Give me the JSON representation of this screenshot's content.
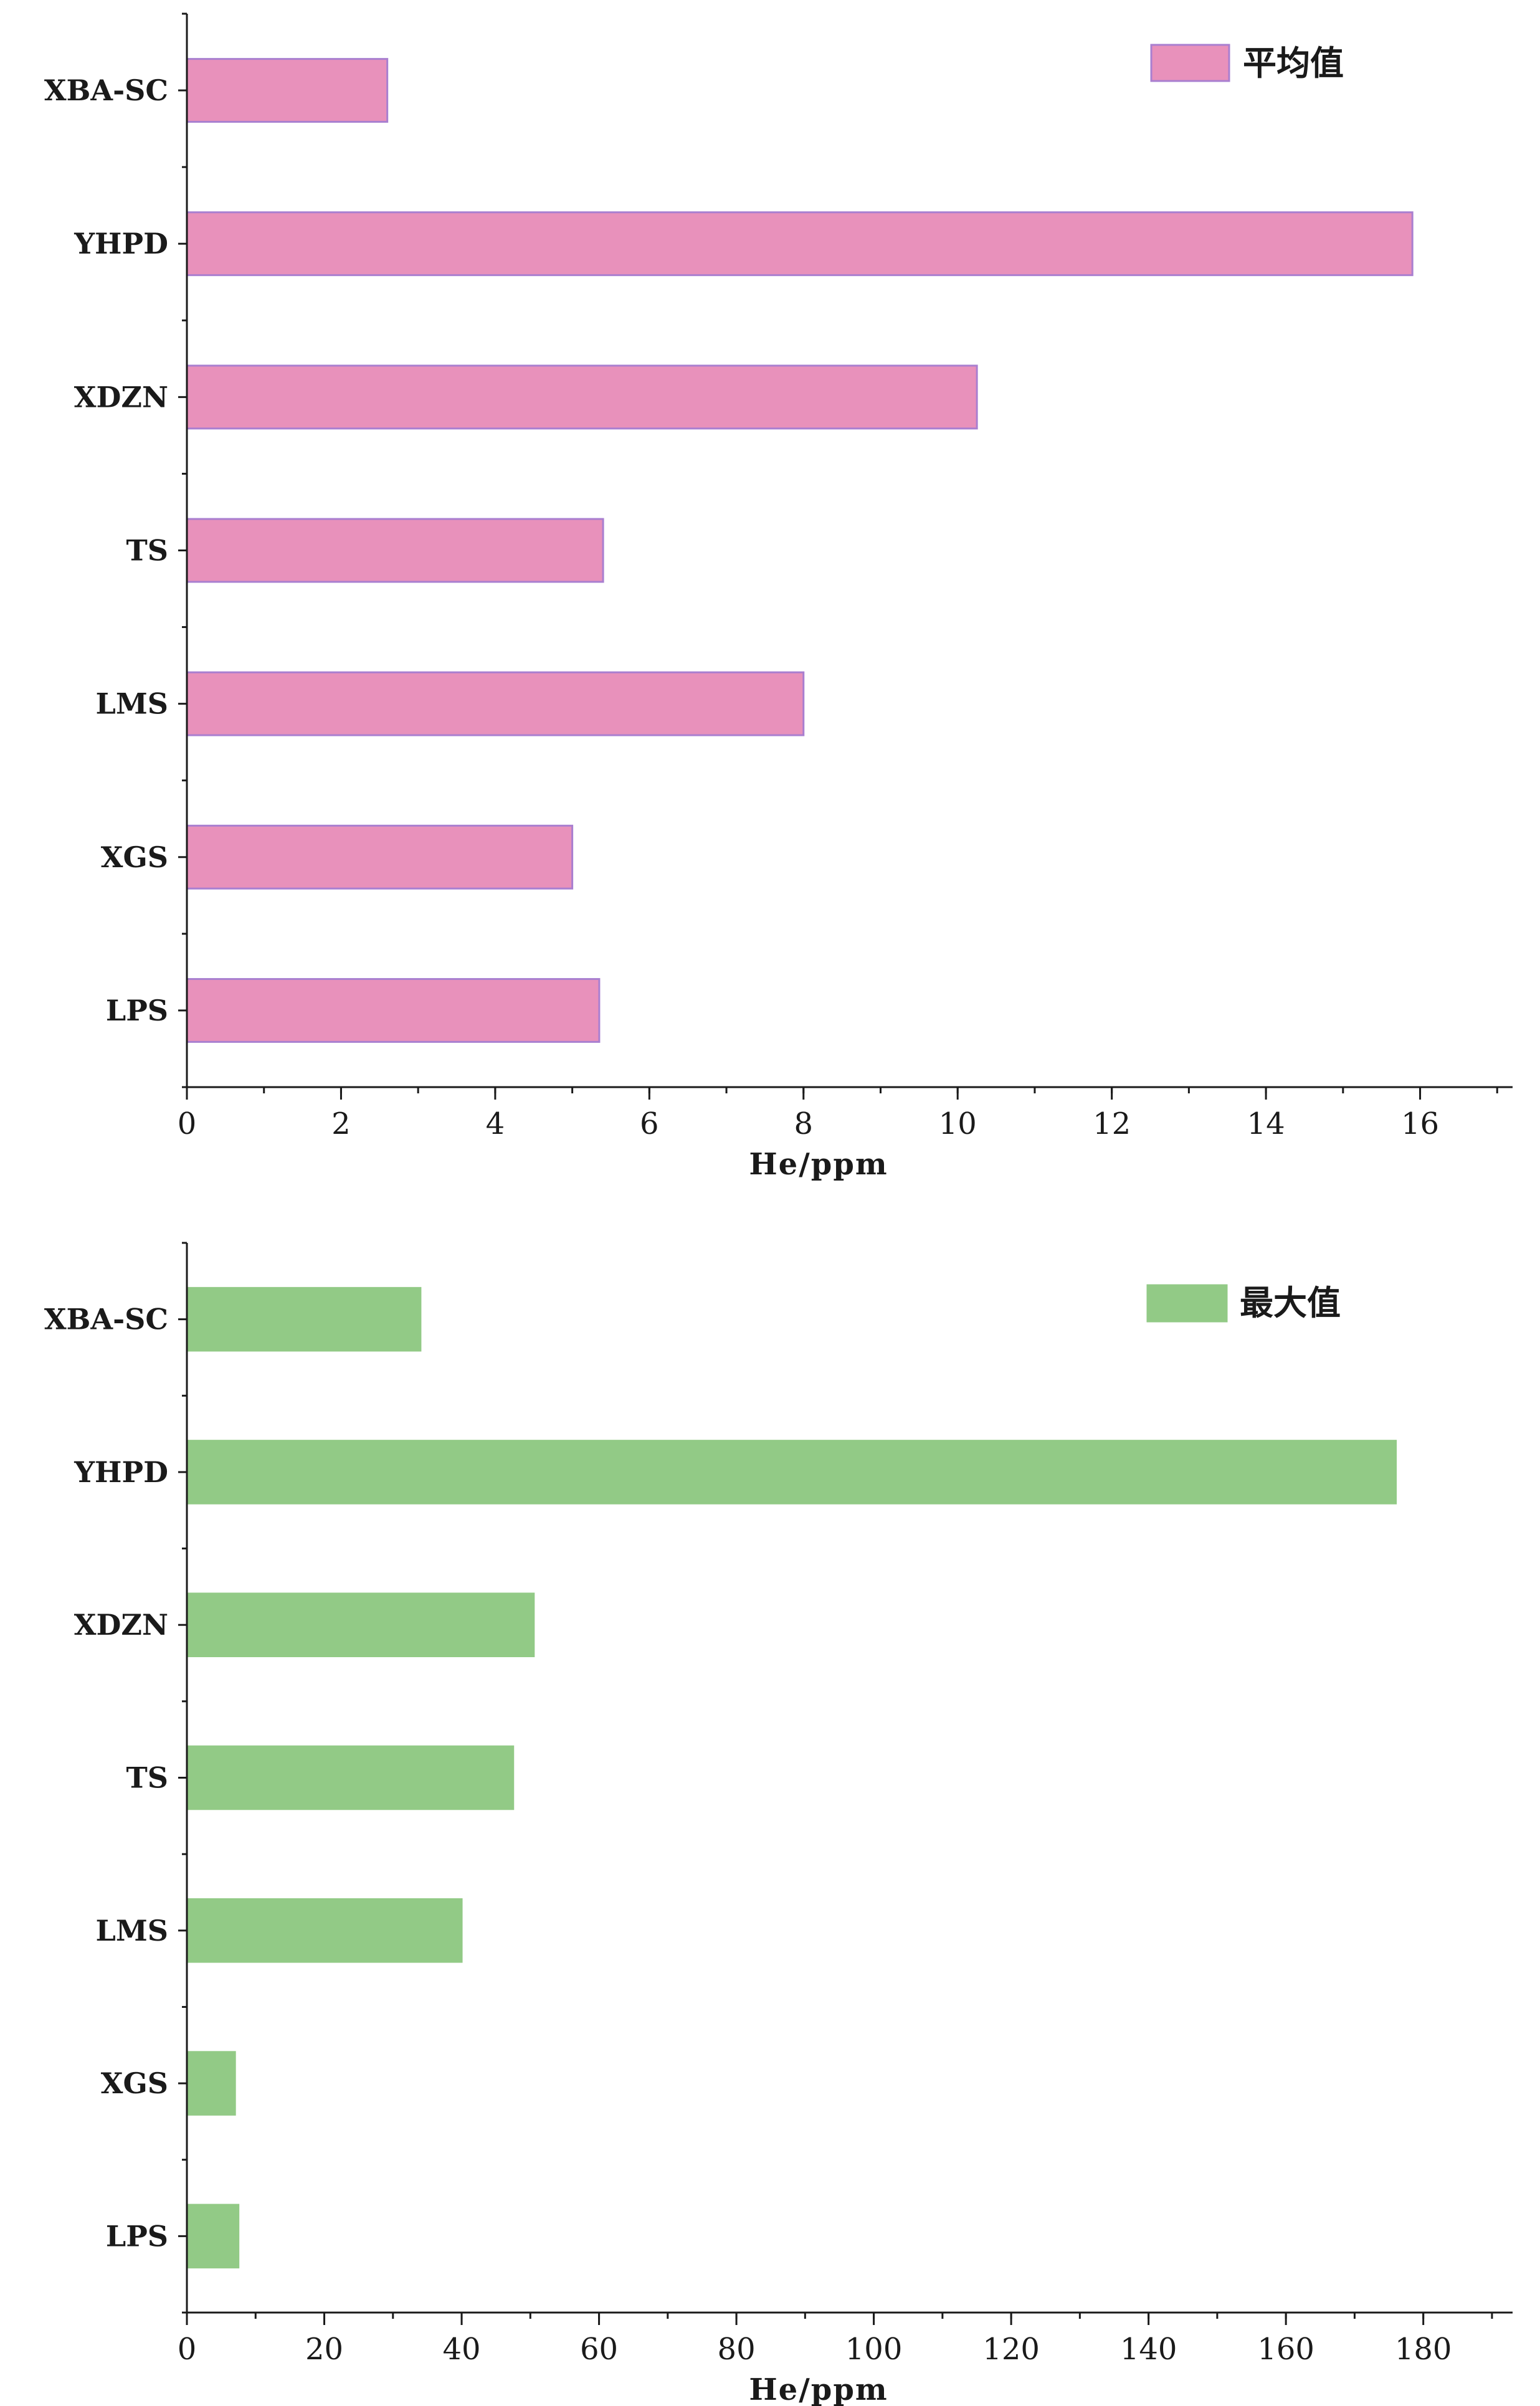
{
  "chart_data": [
    {
      "type": "bar",
      "orientation": "horizontal",
      "categories": [
        "XBA-SC",
        "YHPD",
        "XDZN",
        "TS",
        "LMS",
        "XGS",
        "LPS"
      ],
      "series": [
        {
          "name": "平均值",
          "values": [
            2.6,
            15.9,
            10.25,
            5.4,
            8.0,
            5.0,
            5.35
          ]
        }
      ],
      "xlabel": "He/ppm",
      "xlim": [
        0,
        17.2
      ],
      "xticks": [
        0,
        2,
        4,
        6,
        8,
        10,
        12,
        14,
        16
      ],
      "x_minor_step": 1,
      "colors": {
        "fill": "#e891bb",
        "stroke": "#a97fd0"
      },
      "legend_position": "top-right",
      "grid": false
    },
    {
      "type": "bar",
      "orientation": "horizontal",
      "categories": [
        "XBA-SC",
        "YHPD",
        "XDZN",
        "TS",
        "LMS",
        "XGS",
        "LPS"
      ],
      "series": [
        {
          "name": "最大值",
          "values": [
            34,
            176,
            50.5,
            47.5,
            40,
            7,
            7.5
          ]
        }
      ],
      "xlabel": "He/ppm",
      "xlim": [
        0,
        193
      ],
      "xticks": [
        0,
        20,
        40,
        60,
        80,
        100,
        120,
        140,
        160,
        180
      ],
      "x_minor_step": 10,
      "colors": {
        "fill": "#92ca86",
        "stroke": "#92ca86"
      },
      "legend_position": "top-right",
      "grid": false
    }
  ]
}
